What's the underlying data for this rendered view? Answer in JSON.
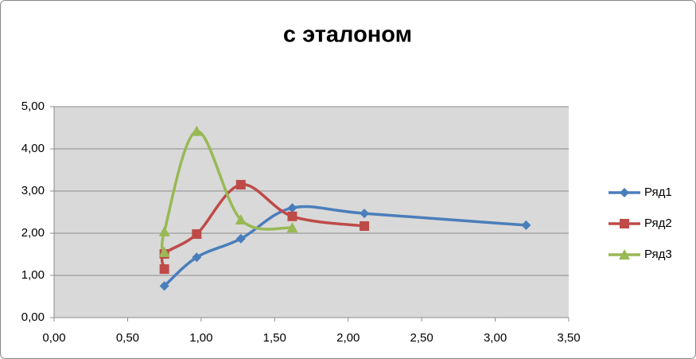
{
  "chart_data": {
    "type": "scatter",
    "title": "с эталоном",
    "xlim": [
      0,
      3.5
    ],
    "ylim": [
      0,
      5
    ],
    "xticks": [
      {
        "value": 0,
        "label": "0,00"
      },
      {
        "value": 0.5,
        "label": "0,50"
      },
      {
        "value": 1,
        "label": "1,00"
      },
      {
        "value": 1.5,
        "label": "1,50"
      },
      {
        "value": 2,
        "label": "2,00"
      },
      {
        "value": 2.5,
        "label": "2,50"
      },
      {
        "value": 3,
        "label": "3,00"
      },
      {
        "value": 3.5,
        "label": "3,50"
      }
    ],
    "yticks": [
      {
        "value": 0,
        "label": "0,00"
      },
      {
        "value": 1,
        "label": "1,00"
      },
      {
        "value": 2,
        "label": "2,00"
      },
      {
        "value": 3,
        "label": "3,00"
      },
      {
        "value": 4,
        "label": "4,00"
      },
      {
        "value": 5,
        "label": "5,00"
      }
    ],
    "grid": true,
    "legend": "right",
    "smooth": true,
    "series": [
      {
        "name": "Ряд1",
        "color": "#4a7ebb",
        "marker": "diamond",
        "x": [
          0.75,
          0.97,
          1.27,
          1.62,
          2.11,
          3.21
        ],
        "values": [
          0.75,
          1.43,
          1.87,
          2.6,
          2.47,
          2.19
        ]
      },
      {
        "name": "Ряд2",
        "color": "#be4b48",
        "marker": "square",
        "x": [
          0.75,
          0.75,
          0.97,
          1.27,
          1.62,
          2.11
        ],
        "values": [
          1.15,
          1.51,
          1.98,
          3.15,
          2.4,
          2.17
        ]
      },
      {
        "name": "Ряд3",
        "color": "#98b954",
        "marker": "triangle",
        "x": [
          0.75,
          0.75,
          0.97,
          1.27,
          1.62
        ],
        "values": [
          1.55,
          2.04,
          4.42,
          2.32,
          2.13
        ]
      }
    ]
  }
}
